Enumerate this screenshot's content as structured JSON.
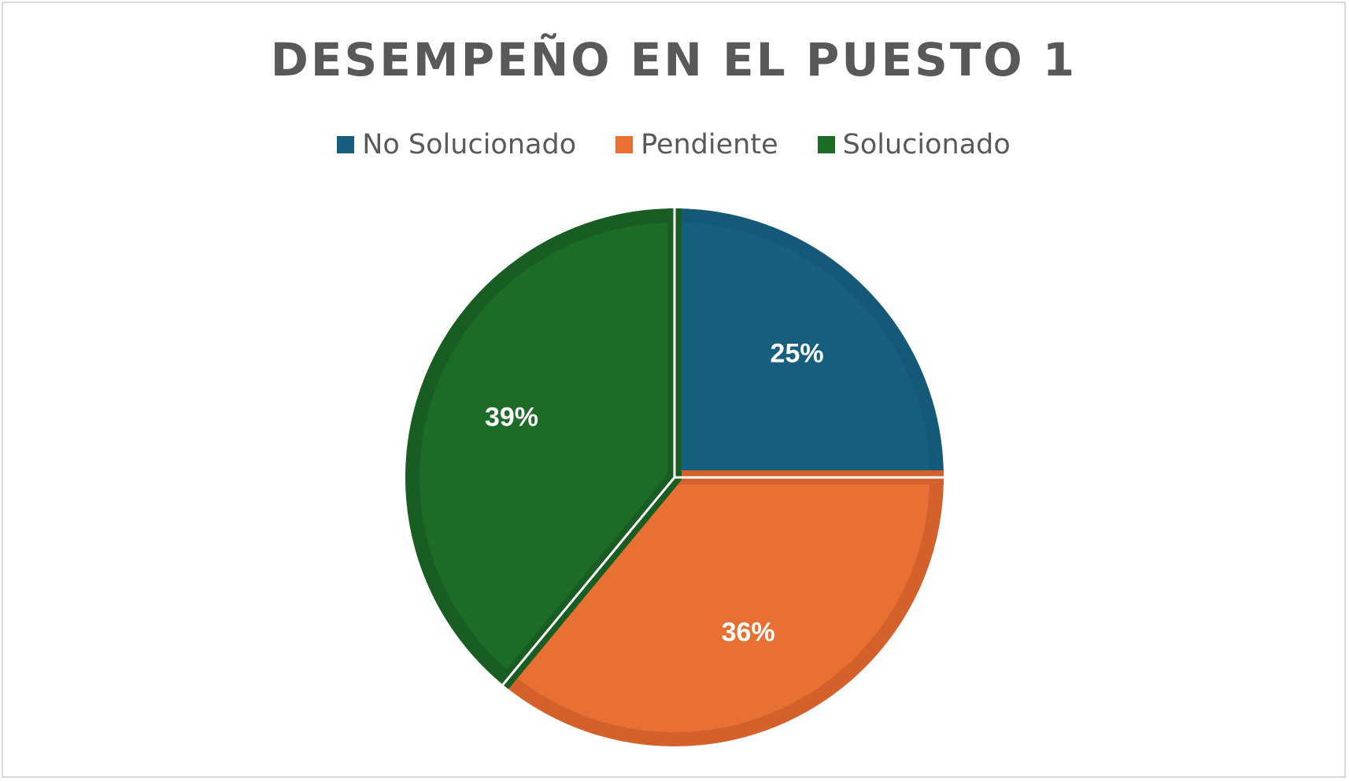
{
  "chart_data": {
    "type": "pie",
    "title": "DESEMPEÑO EN EL PUESTO 1",
    "legend_position": "top",
    "categories": [
      "No Solucionado",
      "Pendiente",
      "Solucionado"
    ],
    "values": [
      25,
      36,
      39
    ],
    "labels": [
      "25%",
      "36%",
      "39%"
    ],
    "colors": [
      "#175f7f",
      "#e87033",
      "#1c6b27"
    ],
    "border_colors": [
      "#145a78",
      "#d4612c",
      "#185e22"
    ]
  }
}
